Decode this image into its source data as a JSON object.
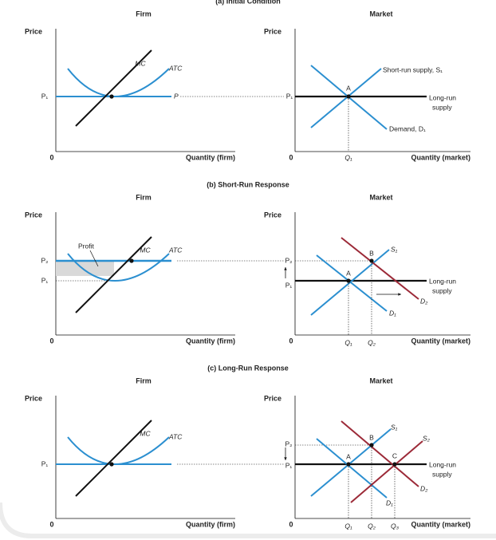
{
  "panels": [
    {
      "title": "(a) Initial Condition",
      "firm": {
        "heading": "Firm",
        "y_label": "Price",
        "origin": "0",
        "x_label": "Quantity (firm)",
        "labels": [
          "MC",
          "ATC",
          "P₁",
          "P"
        ]
      },
      "market": {
        "heading": "Market",
        "y_label": "Price",
        "origin": "0",
        "x_label": "Quantity (market)",
        "labels": [
          "A",
          "P₁",
          "Q₁",
          "Short-run supply, S₁",
          "Long-run",
          "supply",
          "Demand, D₁"
        ]
      }
    },
    {
      "title": "(b) Short-Run Response",
      "firm": {
        "heading": "Firm",
        "y_label": "Price",
        "origin": "0",
        "x_label": "Quantity (firm)",
        "labels": [
          "Profit",
          "MC",
          "ATC",
          "P₂",
          "P₁"
        ]
      },
      "market": {
        "heading": "Market",
        "y_label": "Price",
        "origin": "0",
        "x_label": "Quantity (market)",
        "labels": [
          "B",
          "A",
          "P₂",
          "P₁",
          "S₁",
          "D₂",
          "D₁",
          "Long-run",
          "supply",
          "Q₁",
          "Q₂"
        ]
      }
    },
    {
      "title": "(c) Long-Run Response",
      "firm": {
        "heading": "Firm",
        "y_label": "Price",
        "origin": "0",
        "x_label": "Quantity (firm)",
        "labels": [
          "MC",
          "ATC",
          "P₁"
        ]
      },
      "market": {
        "heading": "Market",
        "y_label": "Price",
        "origin": "0",
        "x_label": "Quantity (market)",
        "labels": [
          "B",
          "C",
          "A",
          "P₂",
          "P₁",
          "S₁",
          "S₂",
          "D₁",
          "D₂",
          "Long-run",
          "supply",
          "Q₁",
          "Q₂",
          "Q₃"
        ]
      }
    }
  ]
}
